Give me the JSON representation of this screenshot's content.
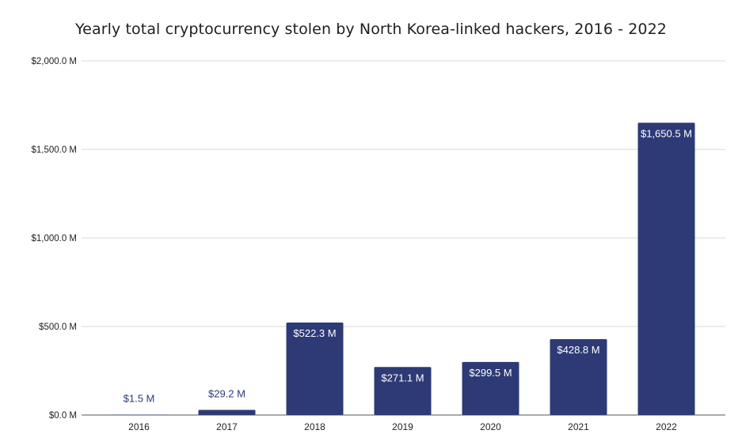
{
  "chart_data": {
    "type": "bar",
    "title": "Yearly total cryptocurrency stolen by North Korea-linked hackers, 2016 - 2022",
    "categories": [
      "2016",
      "2017",
      "2018",
      "2019",
      "2020",
      "2021",
      "2022"
    ],
    "values": [
      1.5,
      29.2,
      522.3,
      271.1,
      299.5,
      428.8,
      1650.5
    ],
    "value_labels": [
      "$1.5 M",
      "$29.2 M",
      "$522.3 M",
      "$271.1 M",
      "$299.5 M",
      "$428.8 M",
      "$1,650.5 M"
    ],
    "yticks": [
      0,
      500,
      1000,
      1500,
      2000
    ],
    "ytick_labels": [
      "$0.0 M",
      "$500.0 M",
      "$1,000.0 M",
      "$1,500.0 M",
      "$2,000.0 M"
    ],
    "ylim": [
      0,
      2000
    ],
    "grid": true,
    "bar_color": "#2d3a75",
    "grid_color": "#d9d9d9"
  }
}
